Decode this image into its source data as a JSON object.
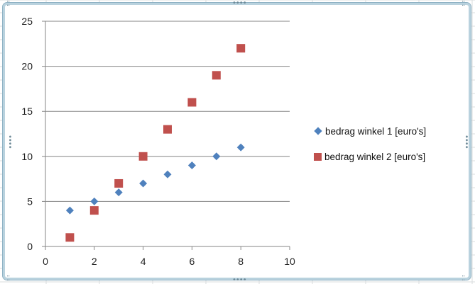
{
  "chart_data": {
    "type": "scatter",
    "title": "",
    "xlabel": "",
    "ylabel": "",
    "xlim": [
      0,
      10
    ],
    "ylim": [
      0,
      25
    ],
    "x_ticks": [
      "0",
      "2",
      "4",
      "6",
      "8",
      "10"
    ],
    "y_ticks": [
      "0",
      "5",
      "10",
      "15",
      "20",
      "25"
    ],
    "grid": "horizontal",
    "legend_position": "right",
    "series": [
      {
        "name": "bedrag winkel 1 [euro's]",
        "marker": "diamond",
        "color": "#4f81bd",
        "points": [
          [
            1,
            4
          ],
          [
            2,
            5
          ],
          [
            3,
            6
          ],
          [
            4,
            7
          ],
          [
            5,
            8
          ],
          [
            6,
            9
          ],
          [
            7,
            10
          ],
          [
            8,
            11
          ]
        ]
      },
      {
        "name": "bedrag winkel 2 [euro's]",
        "marker": "square",
        "color": "#c0504d",
        "points": [
          [
            1,
            1
          ],
          [
            2,
            4
          ],
          [
            3,
            7
          ],
          [
            4,
            10
          ],
          [
            5,
            13
          ],
          [
            6,
            16
          ],
          [
            7,
            19
          ],
          [
            8,
            22
          ]
        ]
      }
    ]
  },
  "colors": {
    "gridline": "#868686",
    "axis": "#868686",
    "frame": "#b9d2de",
    "sheet_grid": "#dadcdd"
  }
}
